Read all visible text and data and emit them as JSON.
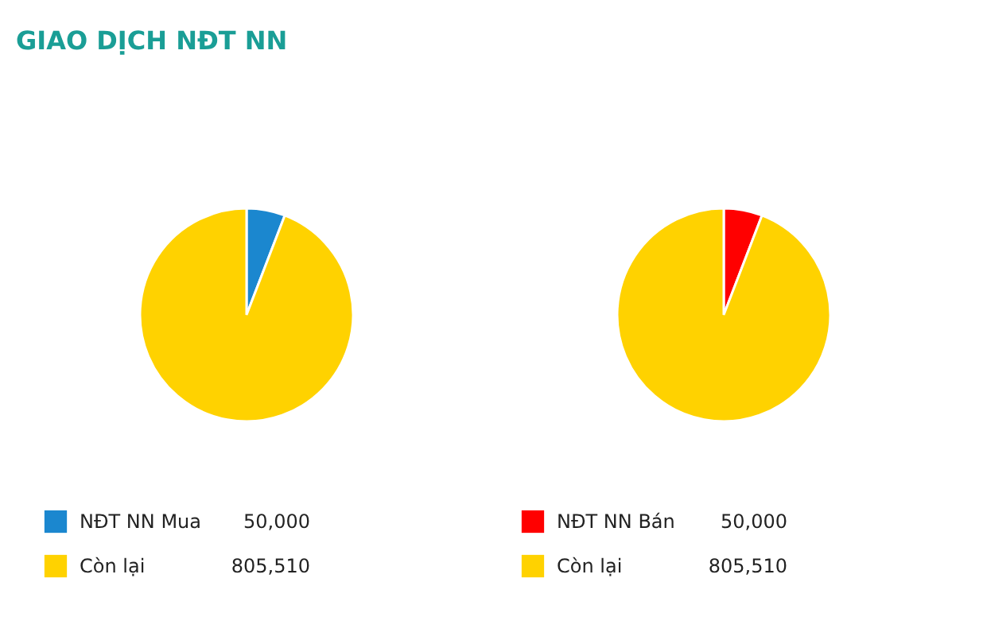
{
  "chart_data": [
    {
      "type": "pie",
      "title": "GIAO DỊCH NĐT NN",
      "categories": [
        "NĐT NN Mua",
        "Còn lại"
      ],
      "values": [
        50000,
        805510
      ],
      "value_labels": [
        "50,000",
        "805,510"
      ],
      "colors": [
        "#1b87cf",
        "#ffd200"
      ],
      "legend": "bottom"
    },
    {
      "type": "pie",
      "categories": [
        "NĐT NN Bán",
        "Còn lại"
      ],
      "values": [
        50000,
        805510
      ],
      "value_labels": [
        "50,000",
        "805,510"
      ],
      "colors": [
        "#ff0000",
        "#ffd200"
      ],
      "legend": "bottom"
    }
  ]
}
